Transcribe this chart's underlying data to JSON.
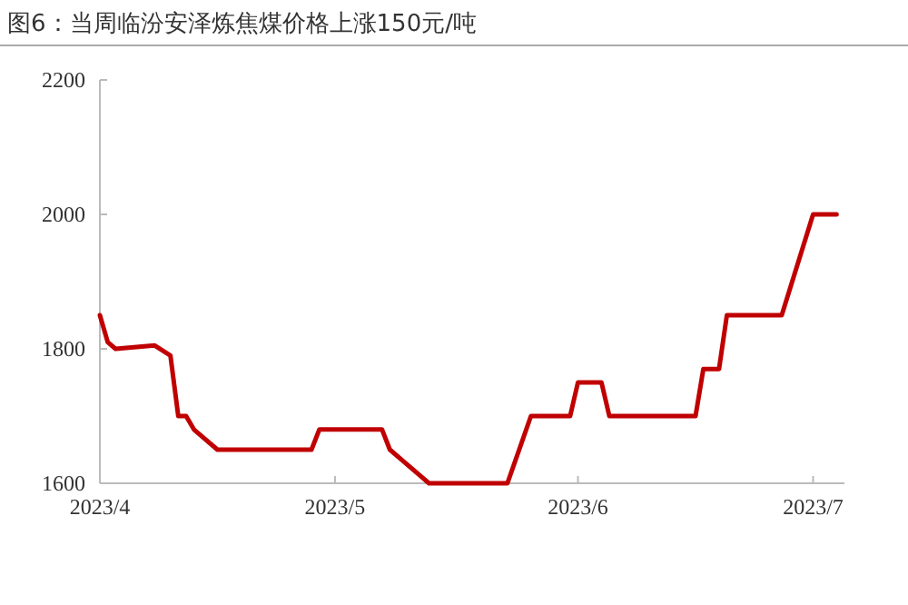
{
  "chart_data": {
    "type": "line",
    "title": "图6：当周临汾安泽炼焦煤价格上涨150元/吨",
    "x": [
      "2023-04-01",
      "2023-04-02",
      "2023-04-03",
      "2023-04-08",
      "2023-04-10",
      "2023-04-11",
      "2023-04-12",
      "2023-04-13",
      "2023-04-16",
      "2023-04-28",
      "2023-04-29",
      "2023-05-07",
      "2023-05-08",
      "2023-05-10",
      "2023-05-12",
      "2023-05-13",
      "2023-05-23",
      "2023-05-26",
      "2023-05-31",
      "2023-06-01",
      "2023-06-04",
      "2023-06-05",
      "2023-06-16",
      "2023-06-17",
      "2023-06-19",
      "2023-06-20",
      "2023-06-27",
      "2023-07-01",
      "2023-07-04"
    ],
    "series": [
      {
        "color": "#c00000",
        "values": [
          1850,
          1810,
          1800,
          1805,
          1790,
          1700,
          1700,
          1680,
          1650,
          1650,
          1680,
          1680,
          1650,
          1630,
          1610,
          1600,
          1600,
          1700,
          1700,
          1750,
          1750,
          1700,
          1700,
          1770,
          1770,
          1850,
          1850,
          2000,
          2000
        ]
      }
    ],
    "xlim": [
      "2023-04-01",
      "2023-07-05"
    ],
    "xticks": [
      {
        "value": "2023-04-01",
        "label": "2023/4"
      },
      {
        "value": "2023-05-01",
        "label": "2023/5"
      },
      {
        "value": "2023-06-01",
        "label": "2023/6"
      },
      {
        "value": "2023-07-01",
        "label": "2023/7"
      }
    ],
    "ylim": [
      1600,
      2200
    ],
    "yticks": [
      1600,
      1800,
      2000,
      2200
    ],
    "grid": false,
    "marker": "none",
    "line_style": "solid"
  }
}
